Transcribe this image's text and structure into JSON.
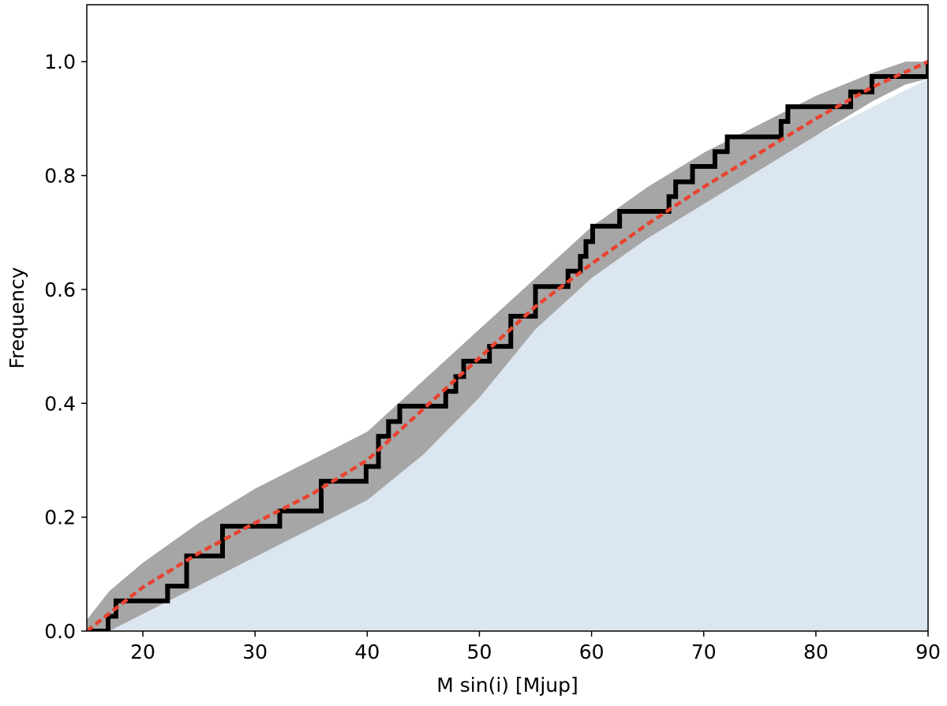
{
  "chart_data": {
    "type": "line",
    "title": "",
    "xlabel": "M sin(i) [Mjup]",
    "ylabel": "Frequency",
    "xlim": [
      15,
      90
    ],
    "ylim": [
      0,
      1.1
    ],
    "x_ticks": [
      20,
      30,
      40,
      50,
      60,
      70,
      80,
      90
    ],
    "y_ticks": [
      0.0,
      0.2,
      0.4,
      0.6,
      0.8,
      1.0
    ],
    "x_tick_labels": [
      "20",
      "30",
      "40",
      "50",
      "60",
      "70",
      "80",
      "90"
    ],
    "y_tick_labels": [
      "0.0",
      "0.2",
      "0.4",
      "0.6",
      "0.8",
      "1.0"
    ],
    "grid": false,
    "colors": {
      "background_fill": "#dce6f0",
      "confidence_band": "#a6a6a6",
      "empirical_step": "#000000",
      "model_fit": "#e8432f"
    },
    "series": [
      {
        "kind": "filled-area",
        "x": [
          15,
          20,
          30,
          40,
          50,
          60,
          70,
          80,
          90
        ],
        "upper": [
          0.0,
          0.07,
          0.2,
          0.3,
          0.45,
          0.62,
          0.76,
          0.87,
          0.97
        ],
        "lower": [
          0.0,
          0.0,
          0.0,
          0.0,
          0.0,
          0.0,
          0.0,
          0.0,
          0.0
        ]
      },
      {
        "kind": "band",
        "x": [
          15,
          17,
          20,
          25,
          30,
          35,
          40,
          45,
          50,
          55,
          60,
          65,
          70,
          75,
          80,
          85,
          88,
          90
        ],
        "upper": [
          0.02,
          0.07,
          0.12,
          0.19,
          0.25,
          0.3,
          0.35,
          0.44,
          0.53,
          0.62,
          0.71,
          0.78,
          0.84,
          0.89,
          0.94,
          0.98,
          1.0,
          1.0
        ],
        "lower": [
          0.0,
          0.0,
          0.03,
          0.08,
          0.13,
          0.18,
          0.23,
          0.31,
          0.41,
          0.53,
          0.62,
          0.69,
          0.75,
          0.81,
          0.87,
          0.93,
          0.96,
          0.97
        ]
      },
      {
        "kind": "step",
        "x": [
          16.9,
          17.6,
          22.2,
          23.9,
          27.1,
          32.2,
          35.9,
          39.9,
          41.0,
          41.9,
          42.9,
          47.0,
          47.9,
          48.6,
          50.9,
          52.8,
          55.0,
          57.9,
          59.0,
          59.5,
          60.1,
          62.5,
          66.9,
          67.5,
          69.0,
          71.0,
          72.1,
          73.0,
          76.9,
          77.5,
          83.1,
          85.0,
          90.0
        ],
        "y": [
          0.026,
          0.053,
          0.079,
          0.132,
          0.184,
          0.211,
          0.263,
          0.289,
          0.342,
          0.368,
          0.395,
          0.421,
          0.447,
          0.474,
          0.5,
          0.553,
          0.605,
          0.632,
          0.658,
          0.684,
          0.711,
          0.737,
          0.763,
          0.789,
          0.816,
          0.842,
          0.868,
          0.868,
          0.895,
          0.921,
          0.947,
          0.974,
          1.0
        ]
      },
      {
        "kind": "dashed",
        "x": [
          15,
          20,
          25,
          30,
          35,
          40,
          45,
          50,
          55,
          60,
          65,
          70,
          75,
          80,
          85,
          90
        ],
        "y": [
          0.0,
          0.077,
          0.137,
          0.19,
          0.24,
          0.3,
          0.39,
          0.48,
          0.57,
          0.645,
          0.715,
          0.78,
          0.84,
          0.9,
          0.955,
          1.0
        ]
      }
    ]
  }
}
